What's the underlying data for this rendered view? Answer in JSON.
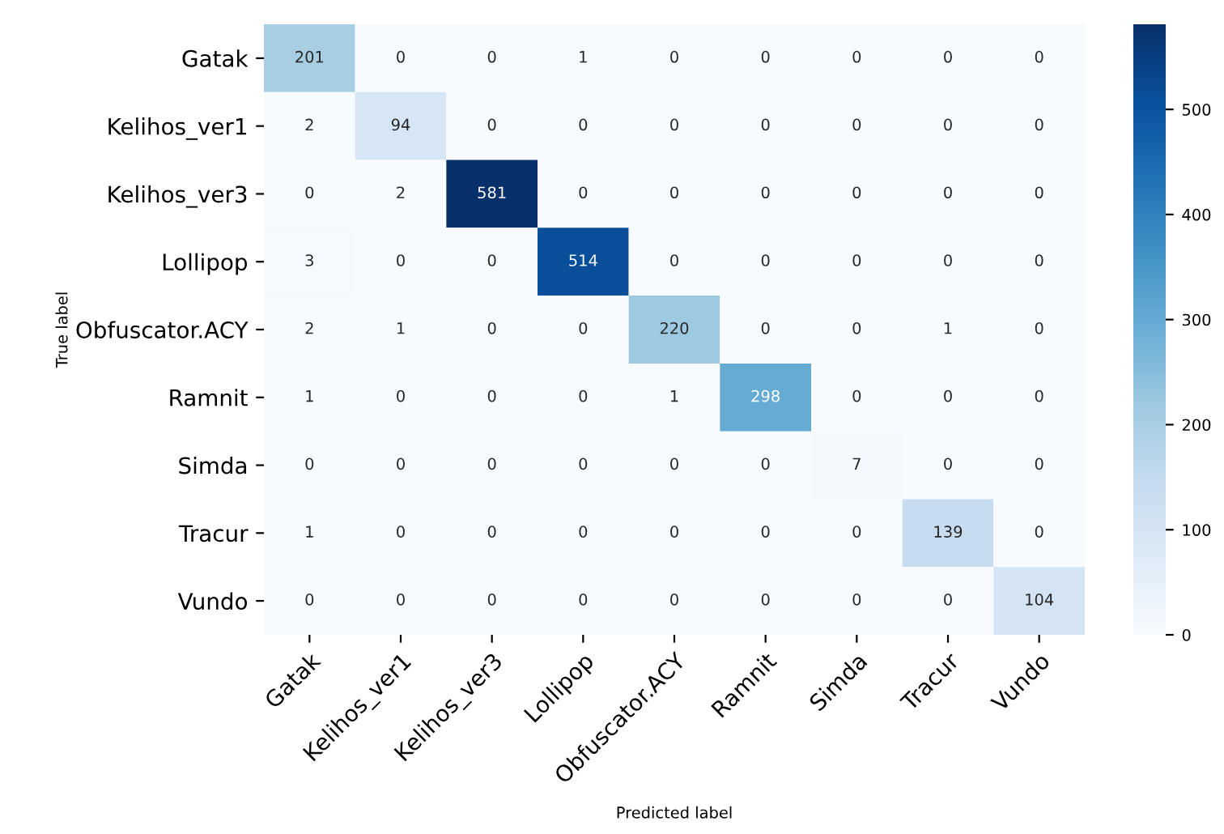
{
  "chart_data": {
    "type": "heatmap",
    "xlabel": "Predicted label",
    "ylabel": "True label",
    "categories": [
      "Gatak",
      "Kelihos_ver1",
      "Kelihos_ver3",
      "Lollipop",
      "Obfuscator.ACY",
      "Ramnit",
      "Simda",
      "Tracur",
      "Vundo"
    ],
    "y_categories": [
      "Gatak",
      "Kelihos_ver1",
      "Kelihos_ver3",
      "Lollipop",
      "Obfuscator.ACY",
      "Ramnit",
      "Simda",
      "Tracur",
      "Vundo"
    ],
    "cells": [
      [
        201,
        0,
        0,
        1,
        0,
        0,
        0,
        0,
        0
      ],
      [
        2,
        94,
        0,
        0,
        0,
        0,
        0,
        0,
        0
      ],
      [
        0,
        2,
        581,
        0,
        0,
        0,
        0,
        0,
        0
      ],
      [
        3,
        0,
        0,
        514,
        0,
        0,
        0,
        0,
        0
      ],
      [
        2,
        1,
        0,
        0,
        220,
        0,
        0,
        1,
        0
      ],
      [
        1,
        0,
        0,
        0,
        1,
        298,
        0,
        0,
        0
      ],
      [
        0,
        0,
        0,
        0,
        0,
        0,
        7,
        0,
        0
      ],
      [
        1,
        0,
        0,
        0,
        0,
        0,
        0,
        139,
        0
      ],
      [
        0,
        0,
        0,
        0,
        0,
        0,
        0,
        0,
        104
      ]
    ],
    "clim": [
      0,
      581
    ],
    "cticks": [
      0,
      100,
      200,
      300,
      400,
      500
    ],
    "data_labels": true
  }
}
